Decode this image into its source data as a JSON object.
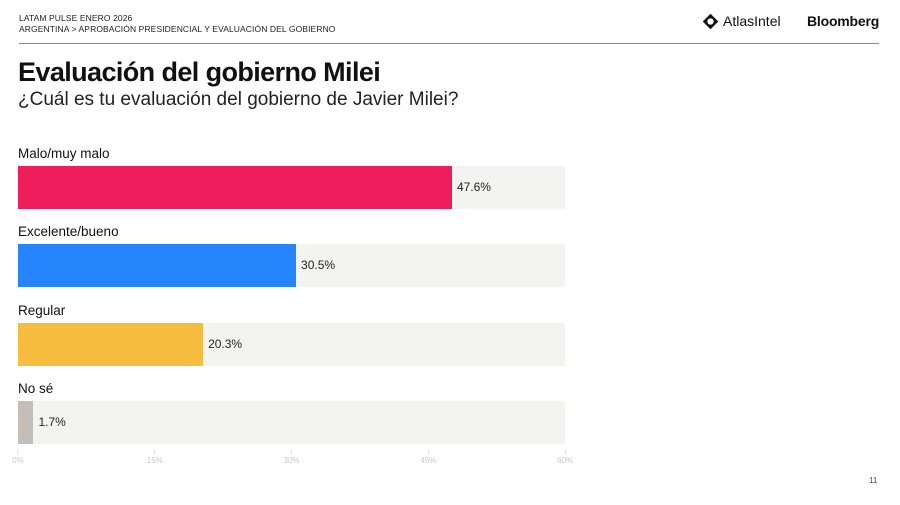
{
  "header": {
    "survey": "LATAM PULSE ENERO 2026",
    "breadcrumb": "ARGENTINA > APROBACIÓN PRESIDENCIAL Y EVALUACIÓN DEL GOBIERNO",
    "logos": {
      "atlas": "AtlasIntel",
      "bloomberg": "Bloomberg"
    }
  },
  "title": "Evaluación del gobierno Milei",
  "subtitle": "¿Cuál es tu evaluación del gobierno de Javier Milei?",
  "page_number": "11",
  "chart_data": {
    "type": "bar",
    "orientation": "horizontal",
    "title": "Evaluación del gobierno Milei",
    "subtitle": "¿Cuál es tu evaluación del gobierno de Javier Milei?",
    "categories": [
      "Malo/muy malo",
      "Excelente/bueno",
      "Regular",
      "No sé"
    ],
    "values": [
      47.6,
      30.5,
      20.3,
      1.7
    ],
    "value_labels": [
      "47.6%",
      "30.5%",
      "20.3%",
      "1.7%"
    ],
    "colors": [
      "#ee1d5c",
      "#2684fc",
      "#f7bd3f",
      "#c4bdb8"
    ],
    "track_color": "#f3f3f1",
    "xlim": [
      0,
      60
    ],
    "xticks": [
      "0%",
      "15%",
      "30%",
      "45%",
      "60%"
    ],
    "xlabel": "",
    "ylabel": "",
    "grid": false,
    "legend": "none"
  }
}
